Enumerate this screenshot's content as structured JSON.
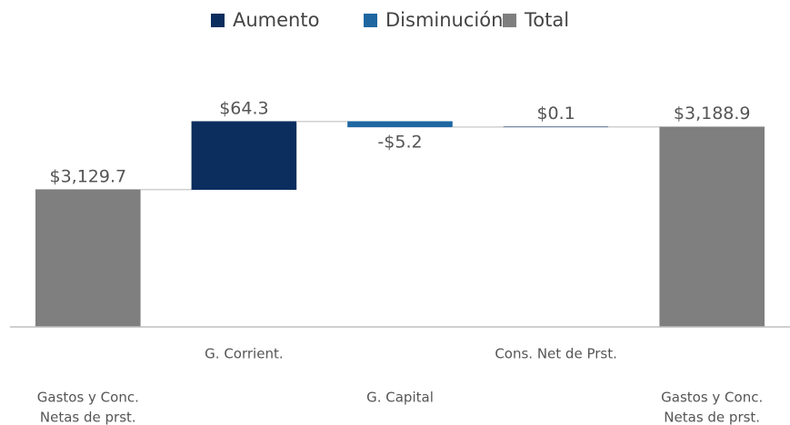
{
  "chart_data": {
    "type": "waterfall",
    "categories": [
      [
        "Gastos y Conc.",
        "Netas de prst."
      ],
      "G. Corrient.",
      "G. Capital",
      "Cons. Net de Prst.",
      [
        "Gastos y Conc.",
        "Netas de prst."
      ]
    ],
    "series": [
      {
        "name": "Aumento",
        "color": "#0b2e5e",
        "kind": "delta",
        "values": [
          null,
          64.3,
          null,
          0.1,
          null
        ],
        "value_labels": [
          null,
          "$64.3",
          null,
          "$0.1",
          null
        ]
      },
      {
        "name": "Disminución",
        "color": "#1f67a0",
        "kind": "delta",
        "values": [
          null,
          null,
          -5.2,
          null,
          null
        ],
        "value_labels": [
          null,
          null,
          "-$5.2",
          null,
          null
        ]
      },
      {
        "name": "Total",
        "color": "#7f7f7f",
        "kind": "total",
        "values": [
          3129.7,
          null,
          null,
          null,
          3188.9
        ],
        "value_labels": [
          "$3,129.7",
          null,
          null,
          null,
          "$3,188.9"
        ]
      }
    ],
    "ylim": [
      3000,
      3250
    ],
    "legend": "top"
  }
}
